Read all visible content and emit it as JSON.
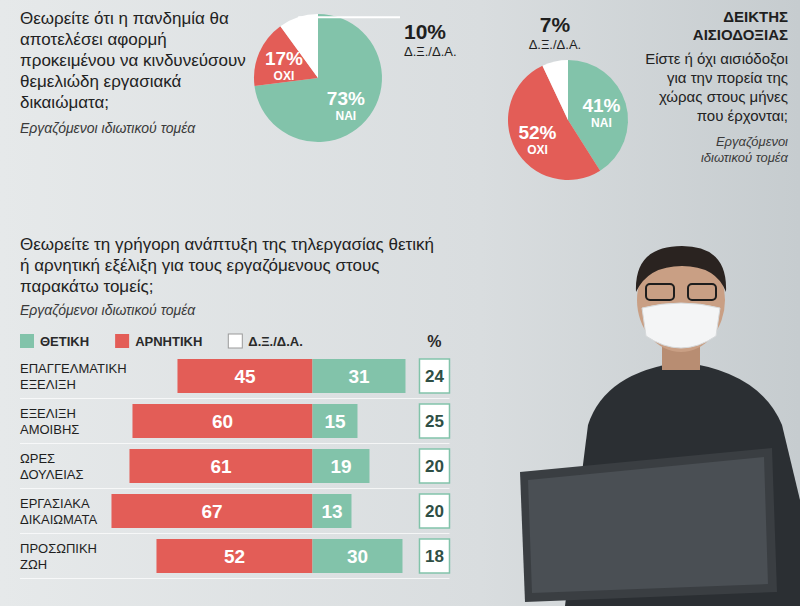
{
  "chart_data": [
    {
      "type": "pie",
      "title": "Θεωρείτε ότι η πανδημία θα αποτελέσει αφορμή προκειμένου να κινδυνεύσουν θεμελιώδη εργασιακά δικαιώματα;",
      "subtitle": "Εργαζόμενοι ιδιωτικού τομέα",
      "categories": [
        "ΝΑΙ",
        "ΟΧΙ",
        "Δ.Ξ./Δ.Α."
      ],
      "values": [
        73,
        17,
        10
      ],
      "value_labels": [
        "73%",
        "17%",
        "10%"
      ],
      "colors": [
        "#82c3aa",
        "#e35d57",
        "#ffffff"
      ],
      "data_labels": true
    },
    {
      "type": "pie",
      "title": "ΔΕΙΚΤΗΣ ΑΙΣΙΟΔΟΞΙΑΣ",
      "subtitle": "Είστε ή όχι αισιόδοξοι για την πορεία της χώρας στους μήνες που έρχονται;",
      "annotations": [
        "Εργαζόμενοι ιδιωτικού τομέα"
      ],
      "categories": [
        "ΝΑΙ",
        "ΟΧΙ",
        "Δ.Ξ./Δ.Α."
      ],
      "values": [
        41,
        52,
        7
      ],
      "value_labels": [
        "41%",
        "52%",
        "7%"
      ],
      "colors": [
        "#82c3aa",
        "#e35d57",
        "#ffffff"
      ],
      "data_labels": true
    },
    {
      "type": "bar",
      "orientation": "horizontal",
      "stacked": true,
      "data_labels": true,
      "tick_labels": false,
      "legend": "top",
      "title": "Θεωρείτε τη γρήγορη ανάπτυξη της τηλεργασίας θετική ή αρνητική εξέλιξη για τους εργαζόμενους στους παρακάτω τομείς;",
      "subtitle": "Εργαζόμενοι ιδιωτικού τομέα",
      "annotations": [
        "%"
      ],
      "categories": [
        "ΕΠΑΓΓΕΛΜΑΤΙΚΗ ΕΞΕΛΙΞΗ",
        "ΕΞΕΛΙΞΗ ΑΜΟΙΒΗΣ",
        "ΩΡΕΣ ΔΟΥΛΕΙΑΣ",
        "ΕΡΓΑΣΙΑΚΑ ΔΙΚΑΙΩΜΑΤΑ",
        "ΠΡΟΣΩΠΙΚΗ ΖΩΗ"
      ],
      "series": [
        {
          "name": "ΘΕΤΙΚΗ",
          "color": "#82c3aa",
          "values": [
            31,
            15,
            19,
            13,
            30
          ]
        },
        {
          "name": "ΑΡΝΗΤΙΚΗ",
          "color": "#e35d57",
          "values": [
            45,
            60,
            61,
            67,
            52
          ]
        },
        {
          "name": "Δ.Ξ./Δ.Α.",
          "color": "#ffffff",
          "values": [
            24,
            25,
            20,
            20,
            18
          ]
        }
      ]
    }
  ]
}
